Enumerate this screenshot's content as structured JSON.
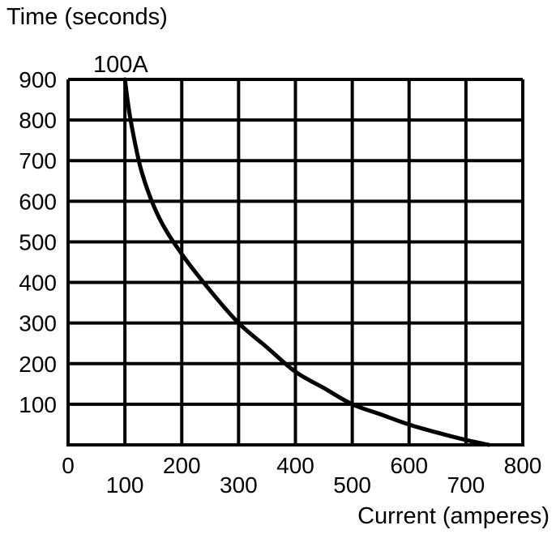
{
  "chart_data": {
    "type": "line",
    "title": "",
    "ylabel": "Time (seconds)",
    "xlabel": "Current (amperes)",
    "xlim": [
      0,
      800
    ],
    "ylim": [
      0,
      900
    ],
    "grid": true,
    "x_ticks_upper": [
      "0",
      "200",
      "400",
      "600",
      "800"
    ],
    "x_ticks_lower": [
      "100",
      "300",
      "500",
      "700"
    ],
    "x_tick_values_upper": [
      0,
      200,
      400,
      600,
      800
    ],
    "x_tick_values_lower": [
      100,
      300,
      500,
      700
    ],
    "y_ticks": [
      "100",
      "200",
      "300",
      "400",
      "500",
      "600",
      "700",
      "800",
      "900"
    ],
    "y_tick_values": [
      100,
      200,
      300,
      400,
      500,
      600,
      700,
      800,
      900
    ],
    "annotation": "100A",
    "series": [
      {
        "name": "100A",
        "color": "#000000",
        "x": [
          100,
          110,
          130,
          160,
          200,
          250,
          300,
          350,
          400,
          450,
          500,
          550,
          600,
          650,
          700,
          740
        ],
        "y": [
          900,
          800,
          670,
          560,
          470,
          380,
          300,
          240,
          180,
          140,
          100,
          75,
          50,
          30,
          12,
          0
        ]
      }
    ]
  }
}
